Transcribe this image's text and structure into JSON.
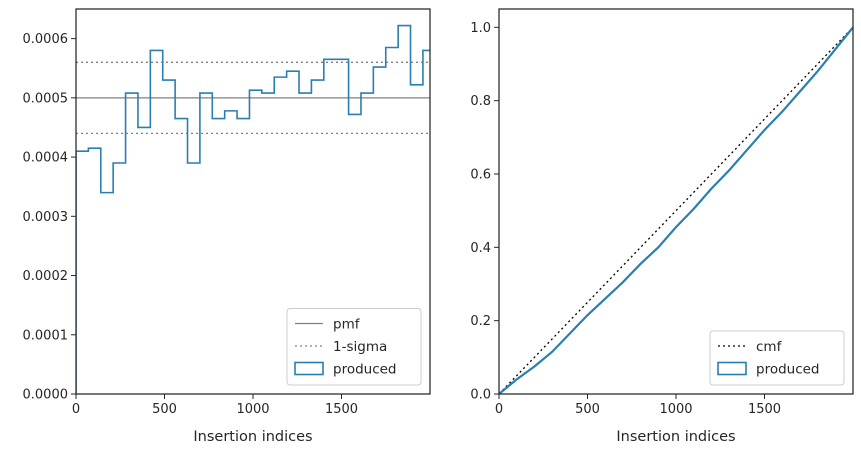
{
  "chart_data": [
    {
      "type": "histogram-step",
      "xlabel": "Insertion indices",
      "ylabel": "",
      "xlim": [
        0,
        2000
      ],
      "ylim": [
        0,
        0.00065
      ],
      "xticks": [
        0,
        500,
        1000,
        1500
      ],
      "xtick_labels": [
        "0",
        "500",
        "1000",
        "1500"
      ],
      "yticks": [
        0,
        0.0001,
        0.0002,
        0.0003,
        0.0004,
        0.0005,
        0.0006
      ],
      "ytick_labels": [
        "0.0000",
        "0.0001",
        "0.0002",
        "0.0003",
        "0.0004",
        "0.0005",
        "0.0006"
      ],
      "bin_edges": [
        0,
        70,
        140,
        210,
        280,
        350,
        420,
        490,
        560,
        630,
        700,
        770,
        840,
        910,
        980,
        1050,
        1120,
        1190,
        1260,
        1330,
        1400,
        1470,
        1540,
        1610,
        1680,
        1750,
        1820,
        1890,
        1960
      ],
      "series": [
        {
          "name": "produced",
          "color": "#2a7fb0",
          "values": [
            0.00041,
            0.000415,
            0.00034,
            0.00039,
            0.000508,
            0.00045,
            0.00058,
            0.00053,
            0.000465,
            0.00039,
            0.000508,
            0.000465,
            0.000478,
            0.000465,
            0.000513,
            0.000508,
            0.000535,
            0.000545,
            0.000508,
            0.00053,
            0.000565,
            0.000565,
            0.000472,
            0.000508,
            0.000552,
            0.000585,
            0.000622,
            0.000522,
            0.00058
          ]
        }
      ],
      "hlines": [
        {
          "name": "pmf",
          "y": 0.0005,
          "style": "solid",
          "color": "#808080"
        },
        {
          "name": "1-sigma",
          "y": 0.00056,
          "style": "dotted",
          "color": "#808080"
        },
        {
          "name": "1-sigma-lower",
          "y": 0.00044,
          "style": "dotted",
          "color": "#808080"
        }
      ],
      "legend": {
        "position": "lower-right",
        "entries": [
          "pmf",
          "1-sigma",
          "produced"
        ]
      },
      "grid": false
    },
    {
      "type": "line",
      "xlabel": "Insertion indices",
      "ylabel": "",
      "xlim": [
        0,
        2000
      ],
      "ylim": [
        0,
        1.05
      ],
      "xticks": [
        0,
        500,
        1000,
        1500
      ],
      "xtick_labels": [
        "0",
        "500",
        "1000",
        "1500"
      ],
      "yticks": [
        0.0,
        0.2,
        0.4,
        0.6,
        0.8,
        1.0
      ],
      "ytick_labels": [
        "0.0",
        "0.2",
        "0.4",
        "0.6",
        "0.8",
        "1.0"
      ],
      "series": [
        {
          "name": "cmf",
          "style": "dotted",
          "color": "#000000",
          "x": [
            0,
            2000
          ],
          "y": [
            0,
            1.0
          ]
        },
        {
          "name": "produced",
          "style": "solid",
          "color": "#2a7fb0",
          "x": [
            0,
            100,
            200,
            300,
            400,
            500,
            600,
            700,
            800,
            900,
            1000,
            1100,
            1200,
            1300,
            1400,
            1500,
            1600,
            1700,
            1800,
            1900,
            2000
          ],
          "y": [
            0,
            0.04,
            0.075,
            0.115,
            0.165,
            0.215,
            0.26,
            0.305,
            0.355,
            0.4,
            0.455,
            0.505,
            0.56,
            0.61,
            0.665,
            0.72,
            0.77,
            0.825,
            0.88,
            0.94,
            1.0
          ]
        }
      ],
      "legend": {
        "position": "lower-right",
        "entries": [
          "cmf",
          "produced"
        ]
      },
      "grid": false
    }
  ]
}
